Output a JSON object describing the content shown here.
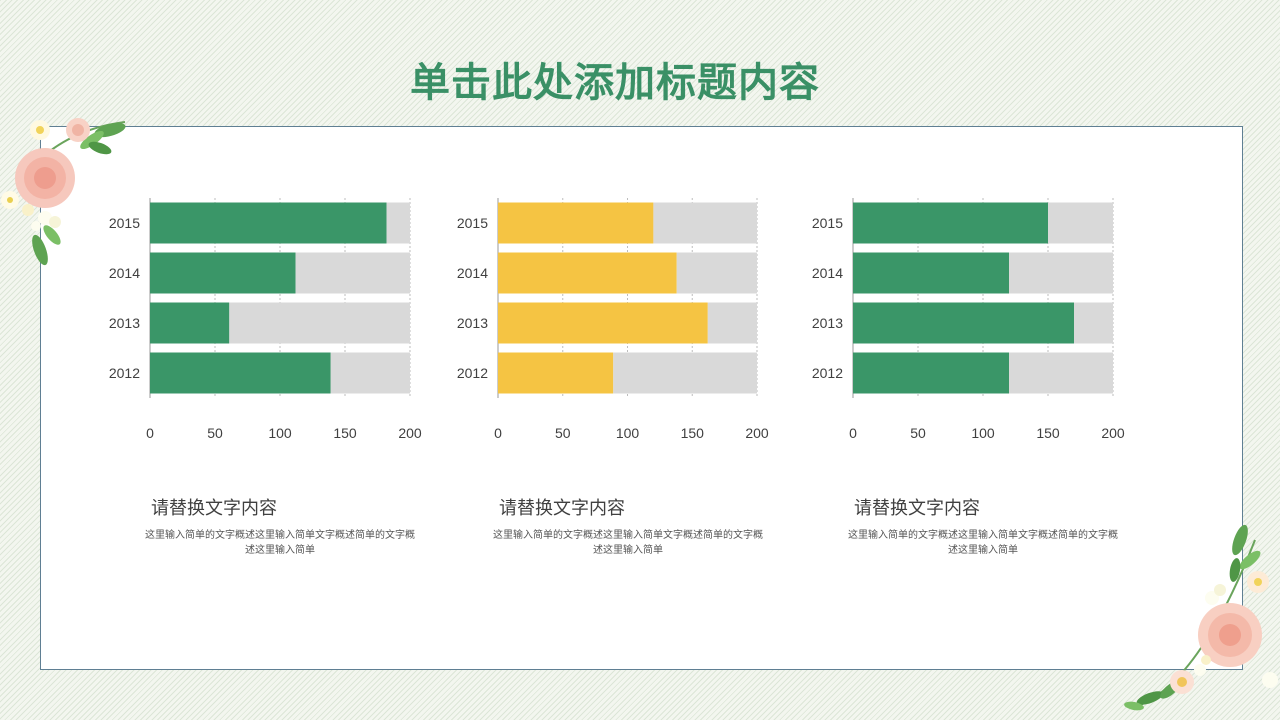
{
  "page": {
    "title": "单击此处添加标题内容"
  },
  "colors": {
    "title": "#3a9066",
    "green": "#3a9668",
    "yellow": "#f5c443",
    "track": "#d9d9d9",
    "frame": "#5f7f93"
  },
  "chart_data": [
    {
      "type": "bar",
      "orientation": "horizontal",
      "stacked": true,
      "categories": [
        "2015",
        "2014",
        "2013",
        "2012"
      ],
      "xlim": [
        0,
        200
      ],
      "xticks": [
        0,
        50,
        100,
        150,
        200
      ],
      "grid": true,
      "series": [
        {
          "values": [
            182,
            112,
            61,
            139
          ],
          "color": "#3a9668"
        },
        {
          "values": [
            18,
            88,
            139,
            61
          ],
          "color": "#d9d9d9"
        }
      ]
    },
    {
      "type": "bar",
      "orientation": "horizontal",
      "stacked": true,
      "categories": [
        "2015",
        "2014",
        "2013",
        "2012"
      ],
      "xlim": [
        0,
        200
      ],
      "xticks": [
        0,
        50,
        100,
        150,
        200
      ],
      "grid": true,
      "series": [
        {
          "values": [
            120,
            138,
            162,
            89
          ],
          "color": "#f5c443"
        },
        {
          "values": [
            80,
            62,
            38,
            111
          ],
          "color": "#d9d9d9"
        }
      ]
    },
    {
      "type": "bar",
      "orientation": "horizontal",
      "stacked": true,
      "categories": [
        "2015",
        "2014",
        "2013",
        "2012"
      ],
      "xlim": [
        0,
        200
      ],
      "xticks": [
        0,
        50,
        100,
        150,
        200
      ],
      "grid": true,
      "series": [
        {
          "values": [
            150,
            120,
            170,
            120
          ],
          "color": "#3a9668"
        },
        {
          "values": [
            50,
            80,
            30,
            80
          ],
          "color": "#d9d9d9"
        }
      ]
    }
  ],
  "captions": [
    {
      "title": "请替换文字内容",
      "body": "这里输入简单的文字概述这里输入简单文字概述简单的文字概述这里输入简单"
    },
    {
      "title": "请替换文字内容",
      "body": "这里输入简单的文字概述这里输入简单文字概述简单的文字概述这里输入简单"
    },
    {
      "title": "请替换文字内容",
      "body": "这里输入简单的文字概述这里输入简单文字概述简单的文字概述这里输入简单"
    }
  ]
}
